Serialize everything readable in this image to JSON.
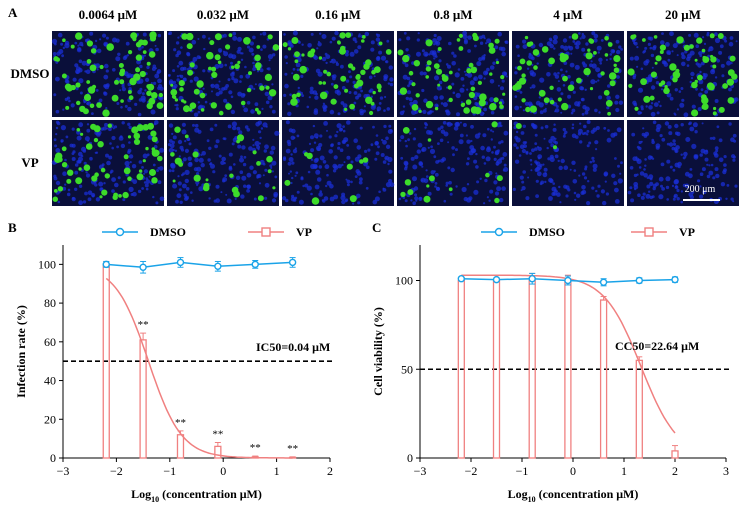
{
  "panel_a": {
    "letter": "A",
    "concentrations": [
      "0.0064 μM",
      "0.032 μM",
      "0.16 μM",
      "0.8 μM",
      "4 μM",
      "20 μM"
    ],
    "rows": [
      {
        "label": "DMSO",
        "green_density": [
          0.55,
          0.5,
          0.5,
          0.5,
          0.45,
          0.5
        ]
      },
      {
        "label": "VP",
        "green_density": [
          0.5,
          0.2,
          0.07,
          0.12,
          0.02,
          0.0
        ]
      }
    ],
    "scale_bar_label": "200 μm",
    "colors": {
      "background": "#0a0f3a",
      "nuclei": "#1a2fd6",
      "infected": "#3ddc2a"
    }
  },
  "colors": {
    "dmso": "#1aa3e8",
    "vp": "#f08080",
    "axis": "#000000"
  },
  "chart_data": [
    {
      "type": "line",
      "panel": "B",
      "legend": {
        "items": [
          "DMSO",
          "VP"
        ],
        "placement": "top"
      },
      "xlabel": "Log10 (concentration μM)",
      "ylabel": "Infection rate (%)",
      "xlim": [
        -3,
        2
      ],
      "ylim": [
        0,
        110
      ],
      "xticks": [
        -3,
        -2,
        -1,
        0,
        1,
        2
      ],
      "yticks": [
        0,
        20,
        40,
        60,
        80,
        100
      ],
      "series": [
        {
          "name": "DMSO",
          "mark": "line-circle",
          "x": [
            -2.19,
            -1.5,
            -0.8,
            -0.1,
            0.6,
            1.3
          ],
          "y": [
            100,
            98.5,
            101,
            99,
            100,
            101
          ],
          "err": [
            1.5,
            3,
            2.5,
            2.5,
            2,
            2.5
          ]
        },
        {
          "name": "VP",
          "mark": "bar-square",
          "x": [
            -2.19,
            -1.5,
            -0.8,
            -0.1,
            0.6,
            1.3
          ],
          "y": [
            100,
            61,
            12,
            6,
            0.5,
            0.3
          ],
          "err": [
            1.5,
            3.5,
            2,
            2,
            0.5,
            0.3
          ],
          "significance": [
            "",
            "**",
            "**",
            "**",
            "**",
            "**"
          ]
        }
      ],
      "fit_curve": {
        "series": "VP",
        "log_ic50": -1.4,
        "hill": 1.4
      },
      "threshold": 50,
      "annotation": "IC50=0.04 μM"
    },
    {
      "type": "line",
      "panel": "C",
      "legend": {
        "items": [
          "DMSO",
          "VP"
        ],
        "placement": "top"
      },
      "xlabel": "Log10 (concentration μM)",
      "ylabel": "Cell viability (%)",
      "xlim": [
        -3,
        3
      ],
      "ylim": [
        0,
        120
      ],
      "xticks": [
        -3,
        -2,
        -1,
        0,
        1,
        2,
        3
      ],
      "yticks": [
        0,
        50,
        100
      ],
      "series": [
        {
          "name": "DMSO",
          "mark": "line-circle",
          "x": [
            -2.19,
            -1.5,
            -0.8,
            -0.1,
            0.6,
            1.3,
            2.0
          ],
          "y": [
            101,
            100.5,
            101,
            100,
            99,
            100,
            100.5
          ],
          "err": [
            1,
            1,
            3,
            2.5,
            2,
            1.5,
            1.5
          ]
        },
        {
          "name": "VP",
          "mark": "bar-square",
          "x": [
            -2.19,
            -1.5,
            -0.8,
            -0.1,
            0.6,
            1.3,
            2.0
          ],
          "y": [
            100,
            100,
            100,
            100,
            89,
            55,
            4
          ],
          "err": [
            1,
            1,
            4,
            3,
            2,
            2,
            3
          ]
        }
      ],
      "fit_curve": {
        "series": "VP",
        "log_cc50": 1.355,
        "hill": 1.2,
        "top": 103
      },
      "threshold": 50,
      "annotation": "CC50=22.64 μM"
    }
  ]
}
